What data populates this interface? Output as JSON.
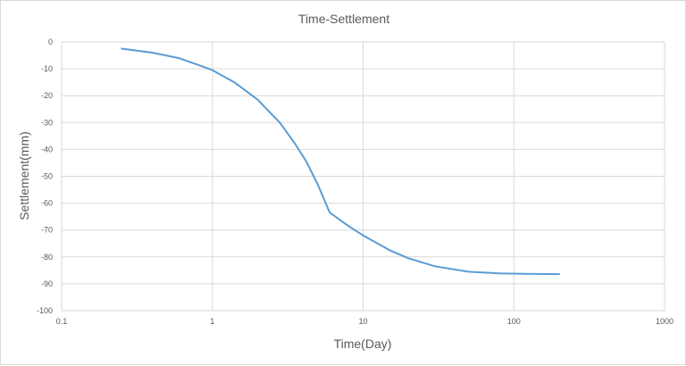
{
  "chart_data": {
    "type": "line",
    "title": "Time-Settlement",
    "xlabel": "Time(Day)",
    "ylabel": "Settlement(mm)",
    "x_scale": "log",
    "xlim": [
      0.1,
      1000
    ],
    "ylim": [
      -100,
      0
    ],
    "x_ticks": [
      "0.1",
      "1",
      "10",
      "100",
      "1000"
    ],
    "y_ticks": [
      "0",
      "-10",
      "-20",
      "-30",
      "-40",
      "-50",
      "-60",
      "-70",
      "-80",
      "-90",
      "-100"
    ],
    "grid": true,
    "legend": "none",
    "series": [
      {
        "color": "#5b9bd5",
        "x": [
          0.25,
          0.4,
          0.6,
          0.8,
          1,
          1.4,
          2,
          2.8,
          3.5,
          4.2,
          5,
          6,
          8,
          10,
          15,
          20,
          30,
          50,
          80,
          120,
          200
        ],
        "y": [
          -2.5,
          -4,
          -6,
          -8.5,
          -10.5,
          -15,
          -21.5,
          -30,
          -37.5,
          -44.5,
          -53,
          -63.5,
          -68.5,
          -72,
          -77.5,
          -80.5,
          -83.5,
          -85.5,
          -86.1,
          -86.3,
          -86.4
        ]
      }
    ]
  }
}
